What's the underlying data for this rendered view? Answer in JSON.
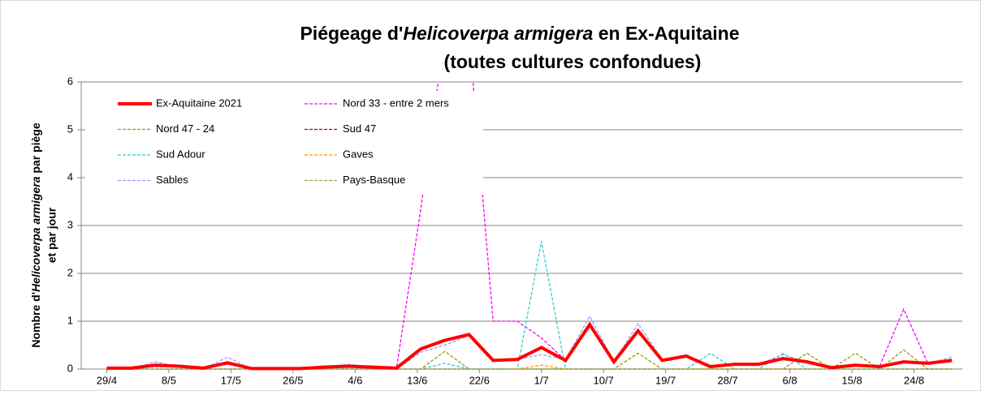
{
  "chart_data": {
    "type": "line",
    "title": {
      "line1": [
        "Piégeage d'",
        "Helicoverpa armigera",
        " en Ex-Aquitaine"
      ],
      "line2": "(toutes cultures confondues)"
    },
    "y_label": {
      "line1": [
        "Nombre d'",
        "Helicoverpa armigera",
        " par piège"
      ],
      "line2": "et par jour"
    },
    "x": [
      0,
      3.5,
      7,
      10.5,
      14,
      17.5,
      21,
      24.5,
      28,
      31.5,
      35,
      38.5,
      42,
      45.5,
      49,
      52.5,
      56,
      59.5,
      63,
      66.5,
      70,
      73.5,
      77,
      80.5,
      84,
      87.5,
      91,
      94.5,
      98,
      101.5,
      105,
      108.5,
      112,
      115.5,
      119,
      122.5
    ],
    "xlim": [
      -3.7,
      124
    ],
    "xticks": [
      {
        "value": 0,
        "label": "29/4"
      },
      {
        "value": 9,
        "label": "8/5"
      },
      {
        "value": 18,
        "label": "17/5"
      },
      {
        "value": 27,
        "label": "26/5"
      },
      {
        "value": 36,
        "label": "4/6"
      },
      {
        "value": 45,
        "label": "13/6"
      },
      {
        "value": 54,
        "label": "22/6"
      },
      {
        "value": 63,
        "label": "1/7"
      },
      {
        "value": 72,
        "label": "10/7"
      },
      {
        "value": 81,
        "label": "19/7"
      },
      {
        "value": 90,
        "label": "28/7"
      },
      {
        "value": 99,
        "label": "6/8"
      },
      {
        "value": 108,
        "label": "15/8"
      },
      {
        "value": 117,
        "label": "24/8"
      }
    ],
    "ylim": [
      0,
      6
    ],
    "yticks": [
      0,
      1,
      2,
      3,
      4,
      5,
      6
    ],
    "grid": true,
    "legend": "upper left",
    "series": [
      {
        "name": "Ex-Aquitaine 2021",
        "color": "#ff0000",
        "values": [
          0.02,
          0.02,
          0.08,
          0.06,
          0.02,
          0.13,
          0.01,
          0.01,
          0.01,
          0.04,
          0.06,
          0.04,
          0.02,
          0.42,
          0.6,
          0.72,
          0.18,
          0.2,
          0.45,
          0.18,
          0.93,
          0.15,
          0.8,
          0.18,
          0.27,
          0.05,
          0.1,
          0.1,
          0.22,
          0.15,
          0.03,
          0.08,
          0.05,
          0.15,
          0.12,
          0.18
        ]
      },
      {
        "name": "Nord 33 - entre 2 mers",
        "color": "#ff00ff",
        "values": [
          0.02,
          0.02,
          0.05,
          0.05,
          0.02,
          0.1,
          0.01,
          0.01,
          0.01,
          0.03,
          0.05,
          0.03,
          0.02,
          3.33,
          7,
          7,
          1,
          1,
          0.65,
          0.18,
          0.9,
          0.15,
          0.8,
          0.18,
          0.27,
          0.05,
          0.1,
          0.1,
          0.2,
          0.15,
          0.03,
          0.08,
          0.05,
          1.25,
          0.12,
          0.18
        ]
      },
      {
        "name": "Nord 47 - 24",
        "color": "#999900",
        "values": [
          0,
          0,
          0,
          0,
          0,
          0,
          0,
          0,
          0,
          0,
          0,
          0,
          0,
          0,
          0.37,
          0,
          0,
          0,
          0,
          0,
          0,
          0,
          0.33,
          0,
          0,
          0,
          0,
          0,
          0,
          0.33,
          0,
          0.33,
          0,
          0.4,
          0,
          0
        ]
      },
      {
        "name": "Sud 47",
        "color": "#990033",
        "values": [
          0,
          0,
          0,
          0,
          0,
          0,
          0,
          0,
          0,
          0,
          0,
          0,
          0,
          0,
          0,
          0,
          0,
          0,
          0,
          0,
          0,
          0,
          0,
          0,
          0,
          0,
          0,
          0,
          0,
          0,
          0,
          0,
          0,
          0,
          0,
          0
        ]
      },
      {
        "name": "Sud Adour",
        "color": "#33cccc",
        "values": [
          0,
          0,
          0,
          0,
          0,
          0,
          0,
          0,
          0,
          0,
          0,
          0,
          0,
          0,
          0.12,
          0,
          0,
          0,
          2.67,
          0,
          0,
          0,
          0,
          0,
          0,
          0.33,
          0,
          0,
          0.33,
          0,
          0,
          0,
          0,
          0,
          0,
          0
        ]
      },
      {
        "name": "Gaves",
        "color": "#ff9900",
        "values": [
          0,
          0,
          0,
          0,
          0,
          0,
          0,
          0,
          0,
          0,
          0,
          0,
          0,
          0,
          0,
          0,
          0,
          0,
          0.08,
          0,
          0,
          0,
          0,
          0,
          0,
          0,
          0,
          0,
          0,
          0,
          0,
          0,
          0,
          0,
          0,
          0
        ]
      },
      {
        "name": "Sables",
        "color": "#9999ff",
        "values": [
          0,
          0,
          0.15,
          0.05,
          0,
          0.25,
          0,
          0,
          0,
          0.05,
          0.1,
          0.05,
          0,
          0.35,
          0.5,
          0.7,
          0.2,
          0.2,
          0.3,
          0.2,
          1.1,
          0.15,
          0.95,
          0.2,
          0.3,
          0.05,
          0.1,
          0.1,
          0.3,
          0.15,
          0.03,
          0.08,
          0.05,
          0.15,
          0.12,
          0.25
        ]
      },
      {
        "name": "Pays-Basque",
        "color": "#99a84d",
        "values": [
          0,
          0,
          0,
          0,
          0,
          0,
          0,
          0,
          0,
          0,
          0,
          0,
          0,
          0,
          0,
          0,
          0,
          0,
          0,
          0,
          0,
          0,
          0,
          0,
          0,
          0,
          0,
          0,
          0,
          0,
          0,
          0,
          0,
          0,
          0,
          0
        ]
      }
    ]
  }
}
